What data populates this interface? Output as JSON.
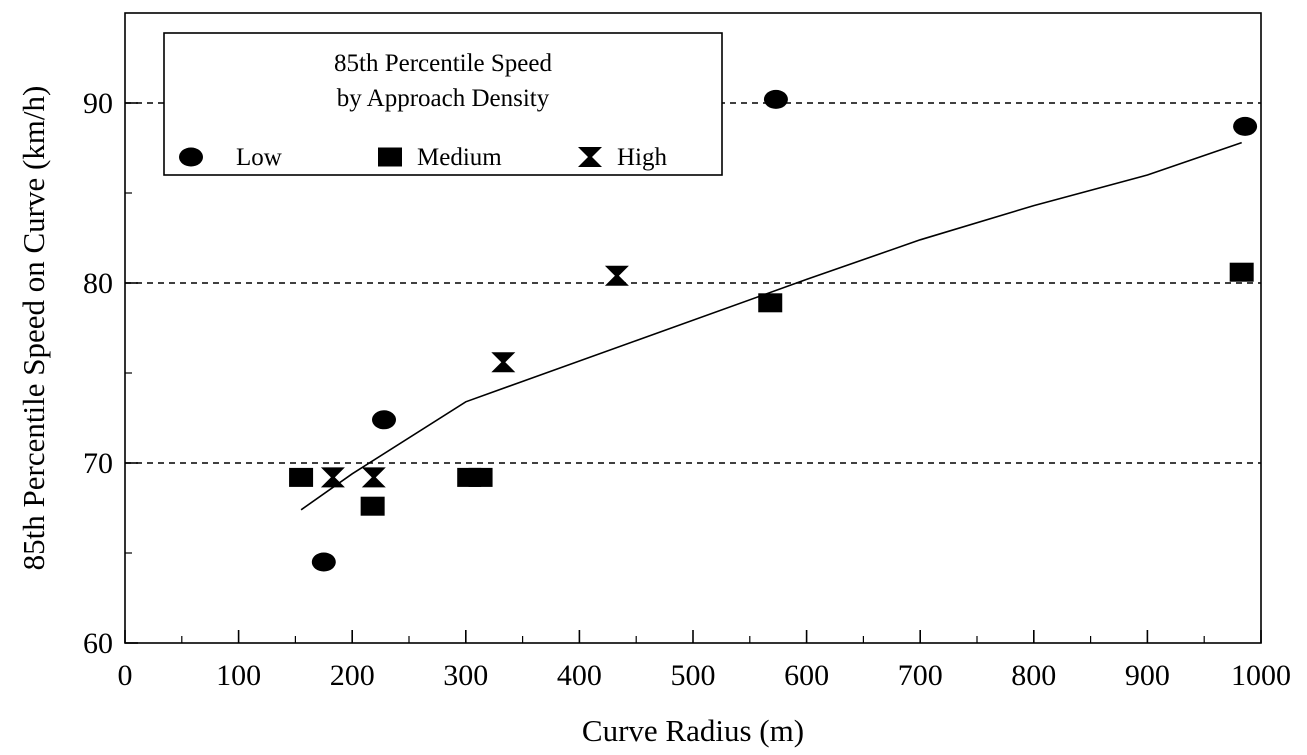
{
  "chart_data": {
    "type": "scatter",
    "title": "",
    "xlabel": "Curve Radius (m)",
    "ylabel": "85th Percentile Speed on Curve (km/h)",
    "xlim": [
      0,
      1000
    ],
    "ylim": [
      60,
      95
    ],
    "x_ticks": [
      0,
      100,
      200,
      300,
      400,
      500,
      600,
      700,
      800,
      900,
      1000
    ],
    "y_ticks": [
      60,
      70,
      80,
      90
    ],
    "y_gridlines": [
      70,
      80,
      90
    ],
    "grid": "horizontal dashed",
    "legend": {
      "placement": "top-left",
      "title_lines": [
        "85th Percentile Speed",
        "by Approach Density"
      ],
      "entries": [
        "Low",
        "Medium",
        "High"
      ]
    },
    "series": [
      {
        "name": "Low",
        "marker": "ellipse",
        "points": [
          [
            175,
            64.5
          ],
          [
            228,
            72.4
          ],
          [
            573,
            90.2
          ],
          [
            986,
            88.7
          ]
        ]
      },
      {
        "name": "Medium",
        "marker": "square",
        "points": [
          [
            155,
            69.2
          ],
          [
            218,
            67.6
          ],
          [
            303,
            69.2
          ],
          [
            313,
            69.2
          ],
          [
            568,
            78.9
          ],
          [
            983,
            80.6
          ]
        ]
      },
      {
        "name": "High",
        "marker": "hourglass",
        "points": [
          [
            183,
            69.2
          ],
          [
            219,
            69.2
          ],
          [
            333,
            75.6
          ],
          [
            433,
            80.4
          ]
        ]
      }
    ],
    "trend_line": {
      "points": [
        [
          155,
          67.4
        ],
        [
          200,
          69.4
        ],
        [
          300,
          73.4
        ],
        [
          450,
          76.8
        ],
        [
          600,
          80.2
        ],
        [
          700,
          82.4
        ],
        [
          800,
          84.3
        ],
        [
          900,
          86.0
        ],
        [
          983,
          87.8
        ]
      ]
    }
  }
}
